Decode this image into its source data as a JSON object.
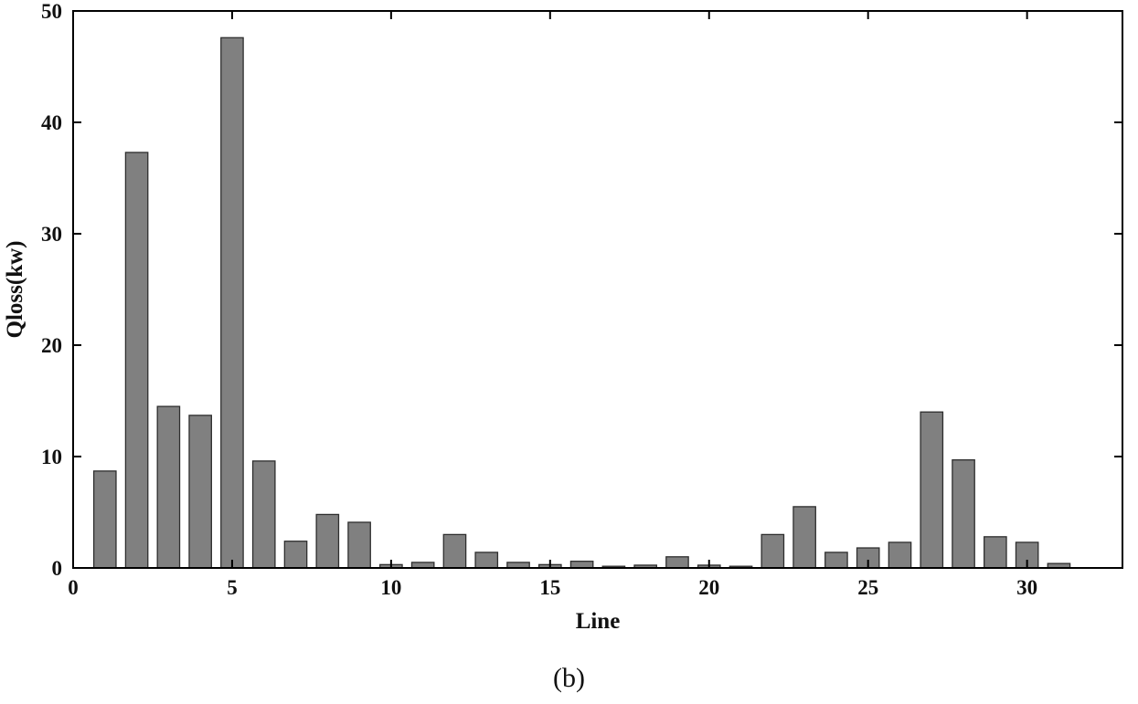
{
  "chart_data": {
    "type": "bar",
    "title": "",
    "xlabel": "Line",
    "ylabel": "Qloss(kw)",
    "caption": "(b)",
    "categories": [
      1,
      2,
      3,
      4,
      5,
      6,
      7,
      8,
      9,
      10,
      11,
      12,
      13,
      14,
      15,
      16,
      17,
      18,
      19,
      20,
      21,
      22,
      23,
      24,
      25,
      26,
      27,
      28,
      29,
      30,
      31
    ],
    "values": [
      8.7,
      37.3,
      14.5,
      13.7,
      47.6,
      9.6,
      2.4,
      4.8,
      4.1,
      0.3,
      0.5,
      3.0,
      1.4,
      0.5,
      0.3,
      0.6,
      0.15,
      0.25,
      1.0,
      0.25,
      0.15,
      3.0,
      5.5,
      1.4,
      1.8,
      2.3,
      14.0,
      9.7,
      2.8,
      2.3,
      0.4
    ],
    "xlim": [
      0,
      33
    ],
    "ylim": [
      0,
      50
    ],
    "xticks": [
      0,
      5,
      10,
      15,
      20,
      25,
      30
    ],
    "yticks": [
      0,
      10,
      20,
      30,
      40,
      50
    ],
    "grid": false,
    "legend": "none",
    "bar_width": 0.7,
    "colors": {
      "bar_fill": "#808080",
      "bar_edge": "#2e2e2e",
      "axis": "#000000",
      "text": "#111111"
    }
  }
}
